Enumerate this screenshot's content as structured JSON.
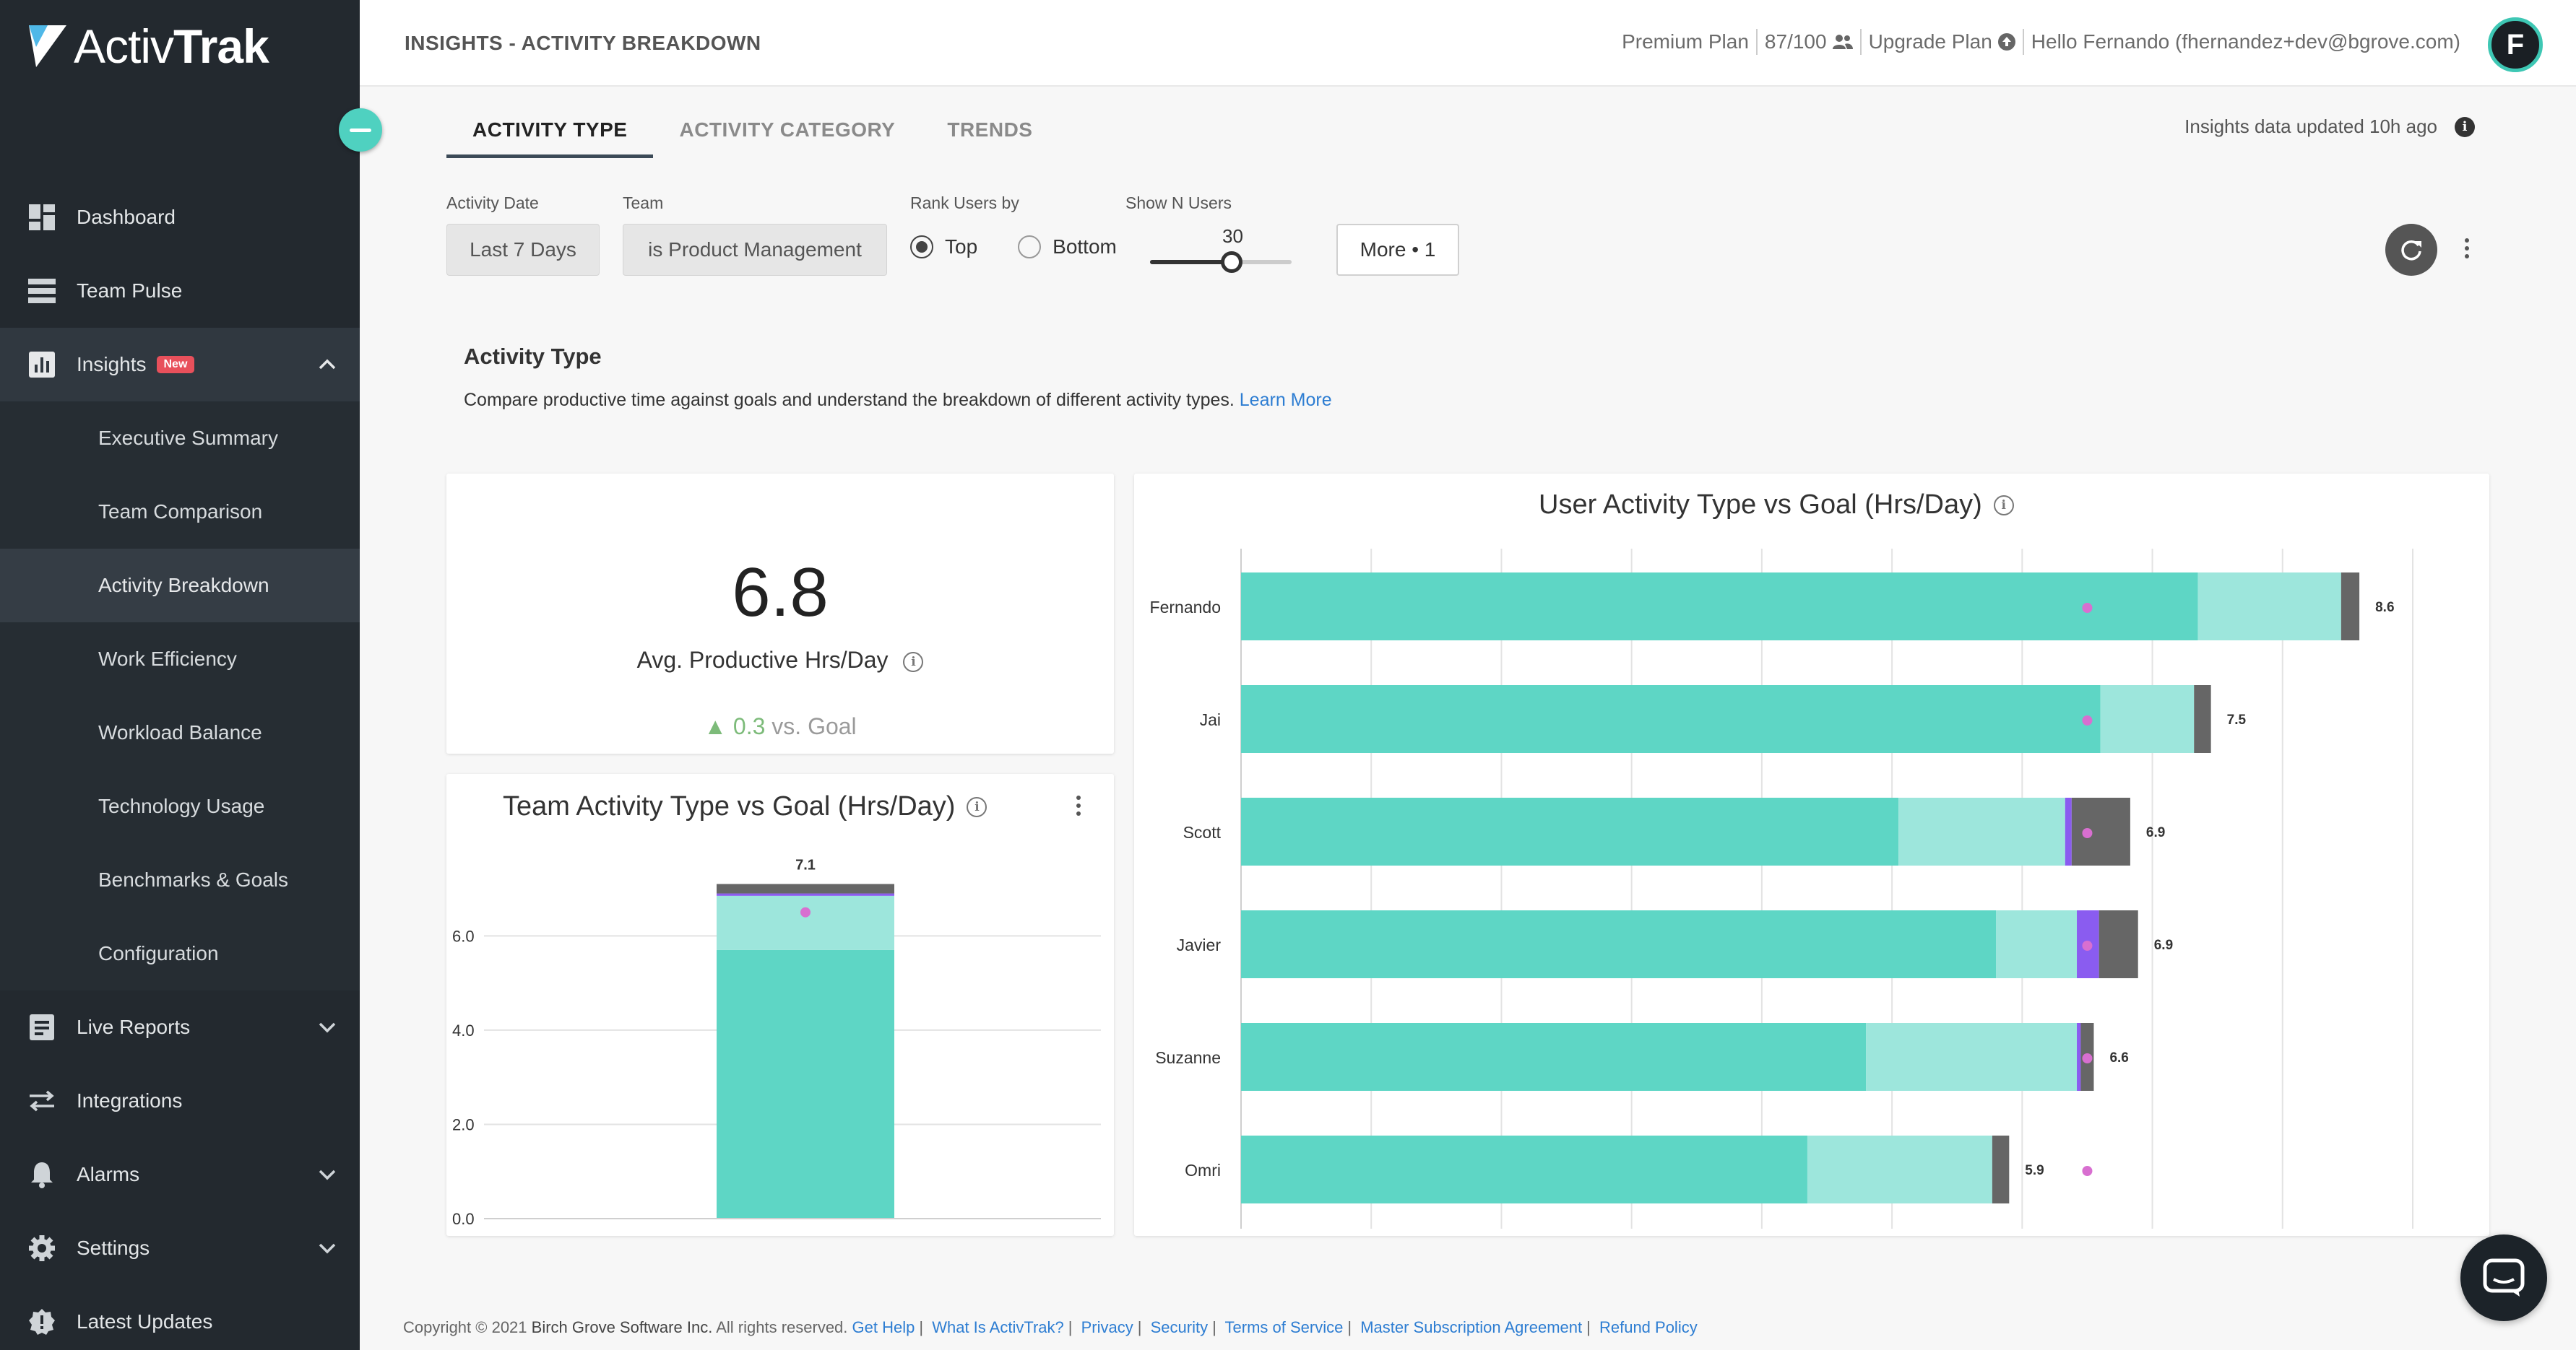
{
  "app": {
    "brand_part1": "Activ",
    "brand_part2": "Trak"
  },
  "sidebar": {
    "items": [
      {
        "label": "Dashboard",
        "icon": "dashboard-icon"
      },
      {
        "label": "Team Pulse",
        "icon": "team-pulse-icon"
      },
      {
        "label": "Insights",
        "icon": "insights-icon",
        "badge": "New",
        "expanded": true
      },
      {
        "label": "Executive Summary"
      },
      {
        "label": "Team Comparison"
      },
      {
        "label": "Activity Breakdown",
        "selected": true
      },
      {
        "label": "Work Efficiency"
      },
      {
        "label": "Workload Balance"
      },
      {
        "label": "Technology Usage"
      },
      {
        "label": "Benchmarks & Goals"
      },
      {
        "label": "Configuration"
      },
      {
        "label": "Live Reports",
        "icon": "live-reports-icon"
      },
      {
        "label": "Integrations",
        "icon": "integrations-icon"
      },
      {
        "label": "Alarms",
        "icon": "bell-icon"
      },
      {
        "label": "Settings",
        "icon": "gear-icon"
      },
      {
        "label": "Latest Updates",
        "icon": "badge-check-icon"
      }
    ]
  },
  "header": {
    "title": "INSIGHTS - ACTIVITY BREAKDOWN",
    "plan": "Premium Plan",
    "seats": "87/100",
    "upgrade": "Upgrade Plan",
    "greeting": "Hello Fernando (fhernandez+dev@bgrove.com)",
    "avatar_initial": "F"
  },
  "tabs": [
    {
      "label": "ACTIVITY TYPE",
      "active": true
    },
    {
      "label": "ACTIVITY CATEGORY"
    },
    {
      "label": "TRENDS"
    }
  ],
  "updated_text": "Insights data updated 10h ago",
  "filters": {
    "activity_date_label": "Activity Date",
    "activity_date_value": "Last 7 Days",
    "team_label": "Team",
    "team_value": "is Product Management",
    "rank_label": "Rank Users by",
    "rank_top": "Top",
    "rank_bottom": "Bottom",
    "rank_selected": "Top",
    "show_n_label": "Show N Users",
    "show_n_value": "30",
    "more": "More • 1"
  },
  "section": {
    "title": "Activity Type",
    "description": "Compare productive time against goals and understand the breakdown of different activity types.",
    "learn_more": "Learn More"
  },
  "kpi": {
    "value": "6.8",
    "label": "Avg. Productive Hrs/Day",
    "delta": "0.3",
    "delta_suffix": "vs. Goal"
  },
  "colors": {
    "productive_active": "#5ed6c5",
    "productive_passive": "#9de6dc",
    "undefined": "#8a5cf0",
    "unproductive": "#666666",
    "goal_marker": "#d86fd0"
  },
  "chart_data": [
    {
      "type": "bar",
      "title": "Team Activity Type vs Goal (Hrs/Day)",
      "categories": [
        ""
      ],
      "stacked": true,
      "series": [
        {
          "values": [
            5.7
          ]
        },
        {
          "values": [
            1.15
          ]
        },
        {
          "values": [
            0.05
          ]
        },
        {
          "values": [
            0.2
          ]
        }
      ],
      "totals": [
        "7.1"
      ],
      "goal": [
        6.5
      ],
      "ylim": [
        0,
        7.2
      ],
      "yticks": [
        "0.0",
        "2.0",
        "4.0",
        "6.0"
      ],
      "grid": true
    },
    {
      "type": "bar",
      "orientation": "horizontal",
      "title": "User Activity Type vs Goal (Hrs/Day)",
      "categories": [
        "Fernando",
        "Jai",
        "Scott",
        "Javier",
        "Suzanne",
        "Omri"
      ],
      "stacked": true,
      "series": [
        {
          "values": [
            7.35,
            6.6,
            5.05,
            5.8,
            4.8,
            4.35
          ]
        },
        {
          "values": [
            1.1,
            0.72,
            1.28,
            0.62,
            1.62,
            1.42
          ]
        },
        {
          "values": [
            0.0,
            0.0,
            0.05,
            0.17,
            0.03,
            0.0
          ]
        },
        {
          "values": [
            0.14,
            0.13,
            0.45,
            0.3,
            0.1,
            0.13
          ]
        }
      ],
      "totals": [
        "8.6",
        "7.5",
        "6.9",
        "6.9",
        "6.6",
        "5.9"
      ],
      "goal": [
        6.5,
        6.5,
        6.5,
        6.5,
        6.5,
        6.5
      ],
      "xlim": [
        0,
        9
      ],
      "grid": true
    }
  ],
  "footer": {
    "copyright": "Copyright © 2021",
    "company": "Birch Grove Software Inc.",
    "rights": "All rights reserved.",
    "links": [
      "Get Help",
      "What Is ActivTrak?",
      "Privacy",
      "Security",
      "Terms of Service",
      "Master Subscription Agreement",
      "Refund Policy"
    ]
  }
}
